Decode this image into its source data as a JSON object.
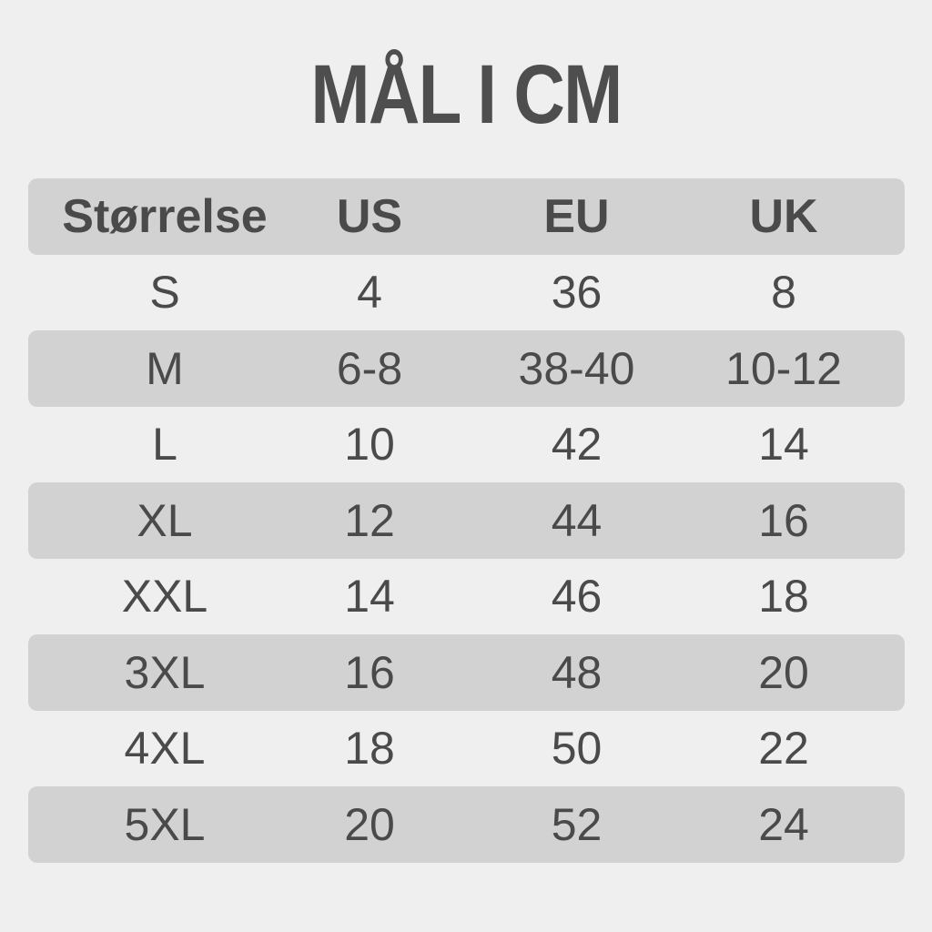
{
  "title": "MÅL I CM",
  "header": [
    "Størrelse",
    "US",
    "EU",
    "UK"
  ],
  "rows": [
    [
      "S",
      "4",
      "36",
      "8"
    ],
    [
      "M",
      "6-8",
      "38-40",
      "10-12"
    ],
    [
      "L",
      "10",
      "42",
      "14"
    ],
    [
      "XL",
      "12",
      "44",
      "16"
    ],
    [
      "XXL",
      "14",
      "46",
      "18"
    ],
    [
      "3XL",
      "16",
      "48",
      "20"
    ],
    [
      "4XL",
      "18",
      "50",
      "22"
    ],
    [
      "5XL",
      "20",
      "52",
      "24"
    ]
  ]
}
